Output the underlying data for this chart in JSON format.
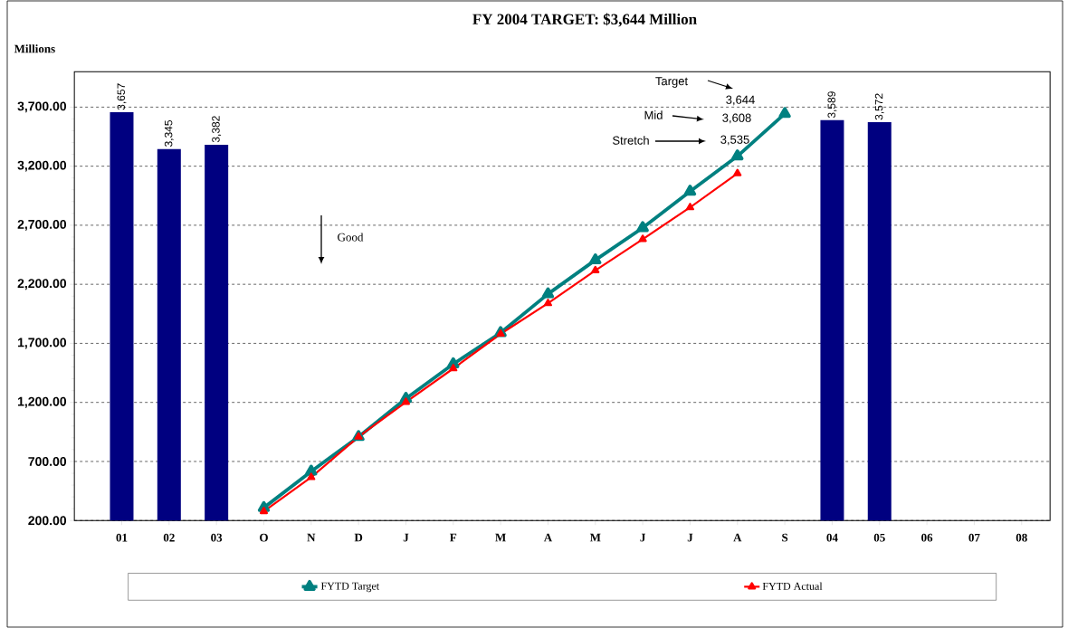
{
  "chart_data": {
    "type": "bar",
    "title": "FY 2004 TARGET:   $3,644 Million",
    "ylabel": "Millions",
    "categories": [
      "01",
      "02",
      "03",
      "O",
      "N",
      "D",
      "J",
      "F",
      "M",
      "A",
      "M",
      "J",
      "J",
      "A",
      "S",
      "04",
      "05",
      "06",
      "07",
      "08"
    ],
    "series": [
      {
        "color": "#000080",
        "values": [
          3657,
          3345,
          3382,
          null,
          null,
          null,
          null,
          null,
          null,
          null,
          null,
          null,
          null,
          null,
          null,
          3589,
          3572,
          null,
          null,
          null
        ],
        "value_labels": [
          "3,657",
          "3,345",
          "3,382",
          null,
          null,
          null,
          null,
          null,
          null,
          null,
          null,
          null,
          null,
          null,
          null,
          "3,589",
          "3,572",
          null,
          null,
          null
        ]
      },
      {
        "type": "line",
        "name": "FYTD Target",
        "color": "#008080",
        "values": [
          null,
          null,
          null,
          308,
          616,
          909,
          1232,
          1525,
          1789,
          2118,
          2405,
          2678,
          2986,
          3285,
          3644,
          null,
          null,
          null,
          null,
          null
        ]
      },
      {
        "type": "line",
        "name": "FYTD Actual",
        "color": "#ff0000",
        "values": [
          null,
          null,
          null,
          278,
          566,
          909,
          1203,
          1487,
          1780,
          2039,
          2317,
          2582,
          2851,
          3139,
          null,
          null,
          null,
          null,
          null,
          null
        ]
      }
    ],
    "ylim": [
      200,
      4000
    ],
    "yticks": [
      {
        "value": 200,
        "label": "200.00"
      },
      {
        "value": 700,
        "label": "700.00"
      },
      {
        "value": 1200,
        "label": "1,200.00"
      },
      {
        "value": 1700,
        "label": "1,700.00"
      },
      {
        "value": 2200,
        "label": "2,200.00"
      },
      {
        "value": 2700,
        "label": "2,700.00"
      },
      {
        "value": 3200,
        "label": "3,200.00"
      },
      {
        "value": 3700,
        "label": "3,700.00"
      }
    ],
    "grid": "y",
    "legend": "bottom",
    "marker": "triangle",
    "line_style": "solid",
    "annotations": [
      "Target",
      "3,644",
      "Mid",
      "3,608",
      "Stretch",
      "3,535",
      "Good"
    ]
  }
}
